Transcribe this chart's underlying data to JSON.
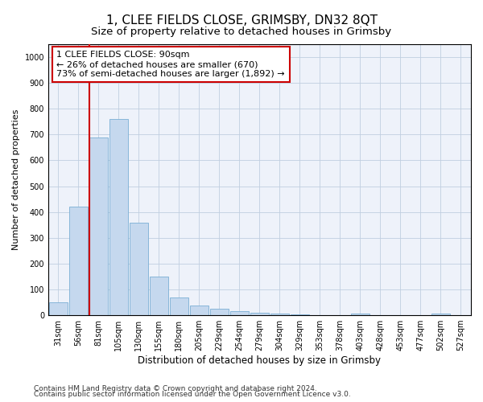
{
  "title": "1, CLEE FIELDS CLOSE, GRIMSBY, DN32 8QT",
  "subtitle": "Size of property relative to detached houses in Grimsby",
  "xlabel": "Distribution of detached houses by size in Grimsby",
  "ylabel": "Number of detached properties",
  "categories": [
    "31sqm",
    "56sqm",
    "81sqm",
    "105sqm",
    "130sqm",
    "155sqm",
    "180sqm",
    "205sqm",
    "229sqm",
    "254sqm",
    "279sqm",
    "304sqm",
    "329sqm",
    "353sqm",
    "378sqm",
    "403sqm",
    "428sqm",
    "453sqm",
    "477sqm",
    "502sqm",
    "527sqm"
  ],
  "values": [
    50,
    420,
    690,
    760,
    360,
    150,
    70,
    38,
    25,
    17,
    10,
    5,
    2,
    0,
    0,
    8,
    0,
    0,
    0,
    8,
    0
  ],
  "bar_color": "#c5d8ee",
  "bar_edge_color": "#7aafd4",
  "vline_x": 2.0,
  "vline_color": "#cc0000",
  "annotation_text": "1 CLEE FIELDS CLOSE: 90sqm\n← 26% of detached houses are smaller (670)\n73% of semi-detached houses are larger (1,892) →",
  "annotation_box_color": "#ffffff",
  "annotation_box_edge": "#cc0000",
  "ylim": [
    0,
    1050
  ],
  "yticks": [
    0,
    100,
    200,
    300,
    400,
    500,
    600,
    700,
    800,
    900,
    1000
  ],
  "grid_color": "#c0cfe0",
  "background_color": "#eef2fa",
  "footer_line1": "Contains HM Land Registry data © Crown copyright and database right 2024.",
  "footer_line2": "Contains public sector information licensed under the Open Government Licence v3.0.",
  "title_fontsize": 11,
  "subtitle_fontsize": 9.5,
  "xlabel_fontsize": 8.5,
  "ylabel_fontsize": 8,
  "tick_fontsize": 7,
  "annotation_fontsize": 8,
  "footer_fontsize": 6.5
}
